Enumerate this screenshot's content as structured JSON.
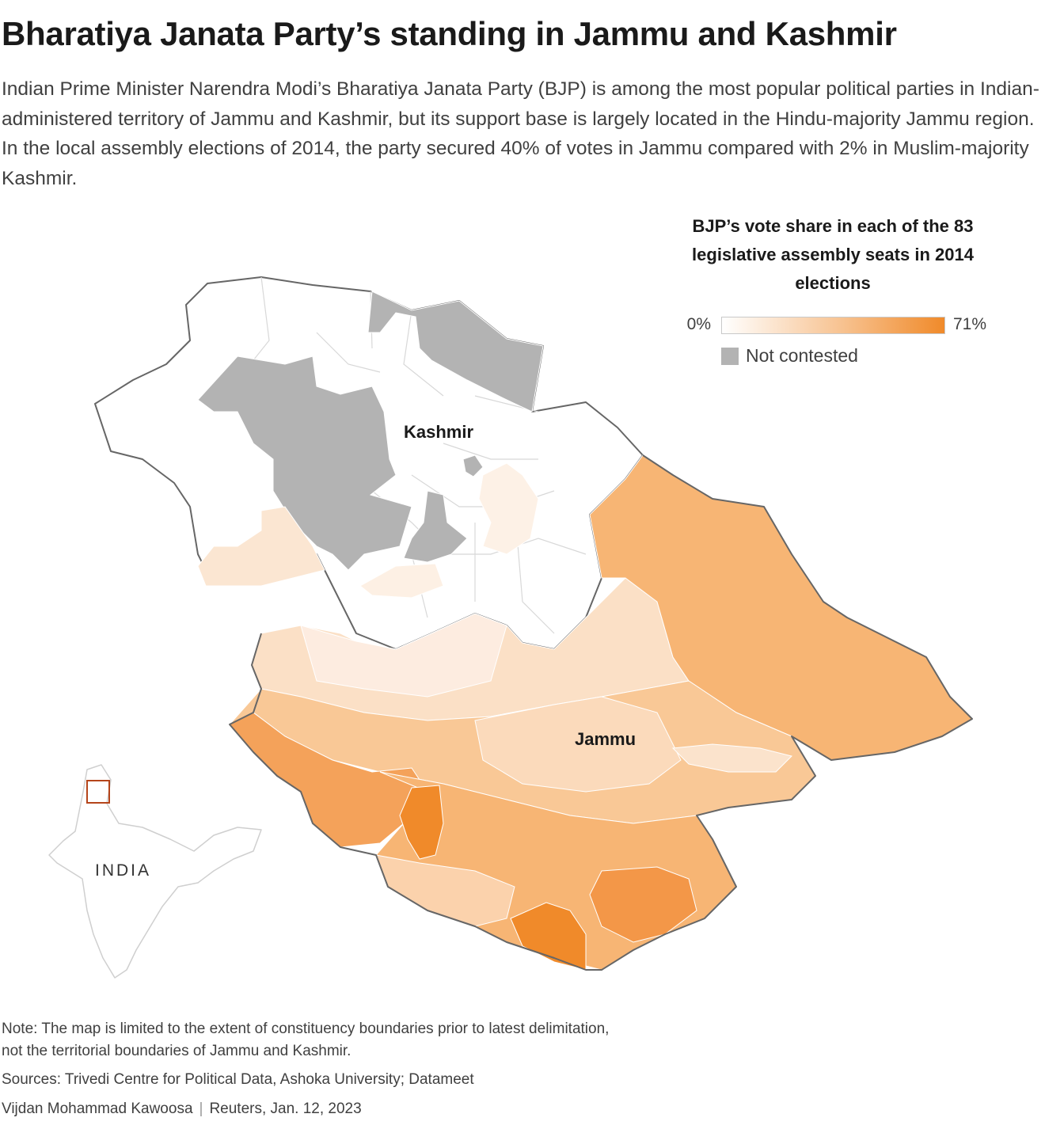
{
  "header": {
    "title": "Bharatiya Janata Party’s standing in Jammu and Kashmir",
    "dek": "Indian Prime Minister Narendra Modi’s Bharatiya Janata Party (BJP) is among the most popular political parties in Indian-administered territory of Jammu and Kashmir, but its support base is largely located in the Hindu-majority Jammu region. In the local assembly elections of 2014, the party secured 40% of votes in Jammu compared with 2% in Muslim-majority Kashmir."
  },
  "legend": {
    "title": "BJP’s vote share in each of the 83 legislative assembly seats in 2014 elections",
    "min_label": "0%",
    "max_label": "71%",
    "scale_min": 0,
    "scale_max": 71,
    "not_contested_label": "Not contested",
    "colors": {
      "low": "#ffffff",
      "high": "#f08a2a",
      "not_contested": "#b3b3b3",
      "border": "#666666"
    }
  },
  "map": {
    "region_labels": {
      "kashmir": "Kashmir",
      "jammu": "Jammu"
    },
    "inset_label": "INDIA"
  },
  "footer": {
    "note": "Note: The map is limited to the extent of constituency boundaries prior to latest delimitation, not the territorial boundaries of Jammu and Kashmir.",
    "sources": "Sources: Trivedi Centre for Political Data, Ashoka University; Datameet",
    "author": "Vijdan Mohammad Kawoosa",
    "publisher_date": "Reuters, Jan. 12, 2023"
  }
}
